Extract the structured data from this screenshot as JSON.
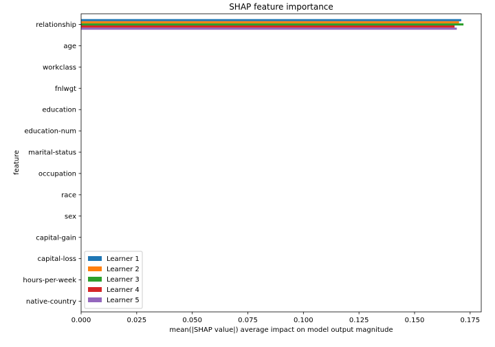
{
  "chart_data": {
    "type": "bar",
    "orientation": "horizontal",
    "title": "SHAP feature importance",
    "xlabel": "mean(|SHAP value|) average impact on model output magnitude",
    "ylabel": "feature",
    "xlim": [
      0,
      0.18
    ],
    "xticks": [
      0.0,
      0.025,
      0.05,
      0.075,
      0.1,
      0.125,
      0.15,
      0.175
    ],
    "xtick_labels": [
      "0.000",
      "0.025",
      "0.050",
      "0.075",
      "0.100",
      "0.125",
      "0.150",
      "0.175"
    ],
    "categories": [
      "relationship",
      "age",
      "workclass",
      "fnlwgt",
      "education",
      "education-num",
      "marital-status",
      "occupation",
      "race",
      "sex",
      "capital-gain",
      "capital-loss",
      "hours-per-week",
      "native-country"
    ],
    "series": [
      {
        "name": "Learner 1",
        "color": "#1f77b4",
        "values": [
          0.171,
          0,
          0,
          0,
          0,
          0,
          0,
          0,
          0,
          0,
          0,
          0,
          0,
          0
        ]
      },
      {
        "name": "Learner 2",
        "color": "#ff7f0e",
        "values": [
          0.17,
          0,
          0,
          0,
          0,
          0,
          0,
          0,
          0,
          0,
          0,
          0,
          0,
          0
        ]
      },
      {
        "name": "Learner 3",
        "color": "#2ca02c",
        "values": [
          0.172,
          0,
          0,
          0,
          0,
          0,
          0,
          0,
          0,
          0,
          0,
          0,
          0,
          0
        ]
      },
      {
        "name": "Learner 4",
        "color": "#d62728",
        "values": [
          0.168,
          0,
          0,
          0,
          0,
          0,
          0,
          0,
          0,
          0,
          0,
          0,
          0,
          0
        ]
      },
      {
        "name": "Learner 5",
        "color": "#9467bd",
        "values": [
          0.169,
          0,
          0,
          0,
          0,
          0,
          0,
          0,
          0,
          0,
          0,
          0,
          0,
          0
        ]
      }
    ],
    "legend_position": "lower-left",
    "grid": false
  }
}
